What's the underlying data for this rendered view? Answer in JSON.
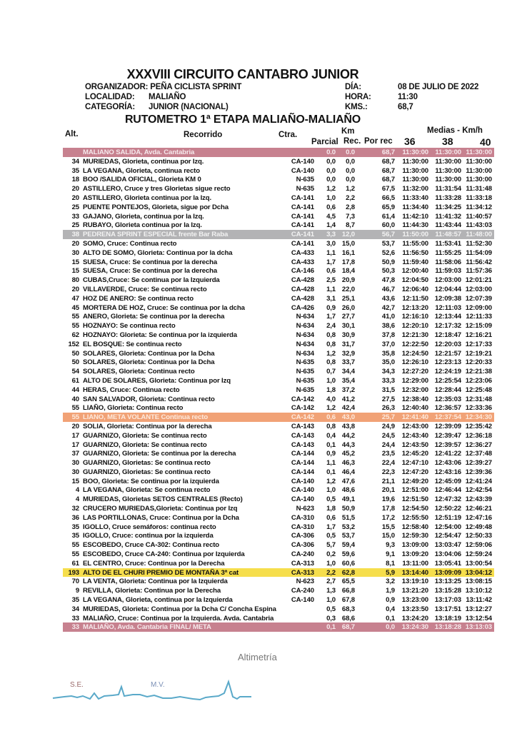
{
  "header": {
    "title": "XXXVIII CIRCUITO CANTABRO JUNIOR",
    "organizador_label": "ORGANIZADOR: PEÑA CICLISTA SPRINT",
    "localidad_label": "LOCALIDAD:",
    "localidad": "MALIAÑO",
    "categoria_label": "CATEGORÍA:",
    "categoria": "JUNIOR (NACIONAL)",
    "dia_label": "DÍA:",
    "dia": "08 DE JULIO DE 2022",
    "hora_label": "HORA:",
    "hora": "11:30",
    "kms_label": "KMS.:",
    "kms": "68,7",
    "subtitle": "RUTOMETRO  1ª ETAPA MALIAÑO-MALIAÑO"
  },
  "columns": {
    "alt": "Alt.",
    "recorrido": "Recorrido",
    "ctra": "Ctra.",
    "km": "Km",
    "medias": "Medias - Km/h",
    "parcial": "Parcial",
    "rec": "Rec.",
    "por_rec": "Por rec",
    "s36": "36",
    "s38": "38",
    "s40": "40"
  },
  "highlight_colors": {
    "start": "#c7818f",
    "sprint": "#b3b3b5",
    "mv": "#f1a276",
    "mountain": "#f6de4c"
  },
  "rows": [
    [
      "",
      "MALIANO SALIDA,  Avda. Cantabria",
      "",
      "0.0",
      "0.0",
      "68,7",
      "11:30:00",
      "11:30:00",
      "11:30:00",
      "start"
    ],
    [
      "34",
      "MURIEDAS,  Glorieta, continua por Izq.",
      "CA-140",
      "0,0",
      "0,0",
      "68,7",
      "11:30:00",
      "11:30:00",
      "11:30:00",
      ""
    ],
    [
      "35",
      "LA VEGANA, Glorieta, continua recto",
      "CA-140",
      "0,0",
      "0,0",
      "68,7",
      "11:30:00",
      "11:30:00",
      "11:30:00",
      ""
    ],
    [
      "18",
      "BOO /SALIDA OFICIAL, Glorieta  KM 0",
      "N-635",
      "0,0",
      "0,0",
      "68,7",
      "11:30:00",
      "11:30:00",
      "11:30:00",
      ""
    ],
    [
      "20",
      "ASTILLERO, Cruce y tres Glorietas sigue recto",
      "N-635",
      "1,2",
      "1,2",
      "67,5",
      "11:32:00",
      "11:31:54",
      "11:31:48",
      ""
    ],
    [
      "20",
      "ASTILLERO, Glorieta continua por la Izq.",
      "CA-141",
      "1,0",
      "2,2",
      "66,5",
      "11:33:40",
      "11:33:28",
      "11:33:18",
      ""
    ],
    [
      "25",
      "PUENTE PONTEJOS, Glorieta, sigue por Dcha",
      "CA-141",
      "0,6",
      "2,8",
      "65,9",
      "11:34:40",
      "11:34:25",
      "11:34:12",
      ""
    ],
    [
      "33",
      "GAJANO, Glorieta, continua por la Izq.",
      "CA-141",
      "4,5",
      "7,3",
      "61,4",
      "11:42:10",
      "11:41:32",
      "11:40:57",
      ""
    ],
    [
      "25",
      "RUBAYO, Glorieta continua por la Izq.",
      "CA-141",
      "1,4",
      "8,7",
      "60,0",
      "11:44:30",
      "11:43:44",
      "11:43:03",
      ""
    ],
    [
      "38",
      "PEDRENA SPRINT ESPECIAL frente Bar Raba",
      "CA-141",
      "3,3",
      "12,0",
      "56,7",
      "11:50:00",
      "11:48:57",
      "11:48:00",
      "sprint"
    ],
    [
      "20",
      "SOMO, Cruce: Continua recto",
      "CA-141",
      "3,0",
      "15,0",
      "53,7",
      "11:55:00",
      "11:53:41",
      "11:52:30",
      ""
    ],
    [
      "30",
      "ALTO DE SOMO, Glorieta: Continua por la dcha",
      "CA-433",
      "1,1",
      "16,1",
      "52,6",
      "11:56:50",
      "11:55:25",
      "11:54:09",
      ""
    ],
    [
      "15",
      "SUESA, Cruce: Se continua por la derecha",
      "CA-433",
      "1,7",
      "17,8",
      "50,9",
      "11:59:40",
      "11:58:06",
      "11:56:42",
      ""
    ],
    [
      "15",
      "SUESA, Cruce: Se continua por la derecha",
      "CA-146",
      "0,6",
      "18,4",
      "50,3",
      "12:00:40",
      "11:59:03",
      "11:57:36",
      ""
    ],
    [
      "80",
      "CUBAS,Cruce: Se continua por la Izquierda",
      "CA-428",
      "2,5",
      "20,9",
      "47,8",
      "12:04:50",
      "12:03:00",
      "12:01:21",
      ""
    ],
    [
      "20",
      "VILLAVERDE, Cruce: Se continua recto",
      "CA-428",
      "1,1",
      "22,0",
      "46,7",
      "12:06:40",
      "12:04:44",
      "12:03:00",
      ""
    ],
    [
      "47",
      "HOZ DE ANERO: Se continua recto",
      "CA-428",
      "3,1",
      "25,1",
      "43,6",
      "12:11:50",
      "12:09:38",
      "12:07:39",
      ""
    ],
    [
      "45",
      "MORTERA DE HOZ, Cruce: Se continua por la dcha",
      "CA-426",
      "0,9",
      "26,0",
      "42,7",
      "12:13:20",
      "12:11:03",
      "12:09:00",
      ""
    ],
    [
      "55",
      "ANERO, Glorieta: Se  continua por la derecha",
      "N-634",
      "1,7",
      "27,7",
      "41,0",
      "12:16:10",
      "12:13:44",
      "12:11:33",
      ""
    ],
    [
      "55",
      "HOZNAYO: Se continua recto",
      "N-634",
      "2,4",
      "30,1",
      "38,6",
      "12:20:10",
      "12:17:32",
      "12:15:09",
      ""
    ],
    [
      "62",
      "HOZNAYO: Glorieta: Se continua por la izquierda",
      "N-634",
      "0,8",
      "30,9",
      "37,8",
      "12:21:30",
      "12:18:47",
      "12:16:21",
      ""
    ],
    [
      "152",
      "EL BOSQUE: Se continua recto",
      "N-634",
      "0,8",
      "31,7",
      "37,0",
      "12:22:50",
      "12:20:03",
      "12:17:33",
      ""
    ],
    [
      "50",
      "SOLARES, Glorieta: Continua por la Dcha",
      "N-634",
      "1,2",
      "32,9",
      "35,8",
      "12:24:50",
      "12:21:57",
      "12:19:21",
      ""
    ],
    [
      "50",
      "SOLARES, Glorieta: Continua por la Dcha",
      "N-635",
      "0,8",
      "33,7",
      "35,0",
      "12:26:10",
      "12:23:13",
      "12:20:33",
      ""
    ],
    [
      "54",
      "SOLARES, Glorieta: Continua recto",
      "N-635",
      "0,7",
      "34,4",
      "34,3",
      "12:27:20",
      "12:24:19",
      "12:21:38",
      ""
    ],
    [
      "61",
      "ALTO DE SOLARES, Glorieta: Continua por Izq",
      "N-635",
      "1,0",
      "35,4",
      "33,3",
      "12:29:00",
      "12:25:54",
      "12:23:06",
      ""
    ],
    [
      "44",
      "HERAS, Cruce: Continua recto",
      "N-635",
      "1,8",
      "37,2",
      "31,5",
      "12:32:00",
      "12:28:44",
      "12:25:48",
      ""
    ],
    [
      "40",
      "SAN SALVADOR, Glorieta: Continua recto",
      "CA-142",
      "4,0",
      "41,2",
      "27,5",
      "12:38:40",
      "12:35:03",
      "12:31:48",
      ""
    ],
    [
      "55",
      "LIAÑO, Glorieta: Continua recto",
      "CA-142",
      "1,2",
      "42,4",
      "26,3",
      "12:40:40",
      "12:36:57",
      "12:33:36",
      ""
    ],
    [
      "55",
      "LIANO,  META VOLANTE   Continua recto",
      "CA-142",
      "0,6",
      "43,0",
      "25,7",
      "12:41:40",
      "12:37:54",
      "12:34:30",
      "mv"
    ],
    [
      "20",
      "SOLIA, Glorieta: Continua por la derecha",
      "CA-143",
      "0,8",
      "43,8",
      "24,9",
      "12:43:00",
      "12:39:09",
      "12:35:42",
      ""
    ],
    [
      "17",
      "GUARNIZO, Glorieta: Se continua recto",
      "CA-143",
      "0,4",
      "44,2",
      "24,5",
      "12:43:40",
      "12:39:47",
      "12:36:18",
      ""
    ],
    [
      "17",
      "GUARNIZO, Glorieta: Se continua recto",
      "CA-143",
      "0,1",
      "44,3",
      "24,4",
      "12:43:50",
      "12:39:57",
      "12:36:27",
      ""
    ],
    [
      "37",
      "GUARNIZO, Glorieta: Se continua por la derecha",
      "CA-144",
      "0,9",
      "45,2",
      "23,5",
      "12:45:20",
      "12:41:22",
      "12:37:48",
      ""
    ],
    [
      "30",
      "GUARNIZO, Glorietas: Se continua recto",
      "CA-144",
      "1,1",
      "46,3",
      "22,4",
      "12:47:10",
      "12:43:06",
      "12:39:27",
      ""
    ],
    [
      "30",
      "GUARNIZO, Glorietas: Se continua recto",
      "CA-144",
      "0,1",
      "46,4",
      "22,3",
      "12:47:20",
      "12:43:16",
      "12:39:36",
      ""
    ],
    [
      "15",
      "BOO, Glorieta: Se continua por la izquierda",
      "CA-140",
      "1,2",
      "47,6",
      "21,1",
      "12:49:20",
      "12:45:09",
      "12:41:24",
      ""
    ],
    [
      "4",
      "LA VEGANA, Glorieta: Se continua recto",
      "CA-140",
      "1,0",
      "48,6",
      "20,1",
      "12:51:00",
      "12:46:44",
      "12:42:54",
      ""
    ],
    [
      "4",
      "MURIEDAS, Glorietas SETOS CENTRALES (Recto)",
      "CA-140",
      "0,5",
      "49,1",
      "19,6",
      "12:51:50",
      "12:47:32",
      "12:43:39",
      ""
    ],
    [
      "32",
      "CRUCERO MURIEDAS,Glorieta: Continua por Izq",
      "N-623",
      "1,8",
      "50,9",
      "17,8",
      "12:54:50",
      "12:50:22",
      "12:46:21",
      ""
    ],
    [
      "36",
      "LAS PORTILLONAS, Cruce: Continua por la Dcha",
      "CA-310",
      "0,6",
      "51,5",
      "17,2",
      "12:55:50",
      "12:51:19",
      "12:47:16",
      ""
    ],
    [
      "35",
      "IGOLLO, Cruce semáforos: continua recto",
      "CA-310",
      "1,7",
      "53,2",
      "15,5",
      "12:58:40",
      "12:54:00",
      "12:49:48",
      ""
    ],
    [
      "35",
      "IGOLLO, Cruce: continua por la izquierda",
      "CA-306",
      "0,5",
      "53,7",
      "15,0",
      "12:59:30",
      "12:54:47",
      "12:50:33",
      ""
    ],
    [
      "55",
      "ESCOBEDO, Cruce CA-302: Continua recto",
      "CA-306",
      "5,7",
      "59,4",
      "9,3",
      "13:09:00",
      "13:03:47",
      "12:59:06",
      ""
    ],
    [
      "55",
      "ESCOBEDO, Cruce CA-240: Continua por Izquierda",
      "CA-240",
      "0,2",
      "59,6",
      "9,1",
      "13:09:20",
      "13:04:06",
      "12:59:24",
      ""
    ],
    [
      "61",
      "EL CENTRO, Cruce: Continua por la Derecha",
      "CA-313",
      "1,0",
      "60,6",
      "8,1",
      "13:11:00",
      "13:05:41",
      "13:00:54",
      ""
    ],
    [
      "193",
      "ALTO DE EL CHURI PREMIO DE MONTAÑA 3ª cat",
      "CA-313",
      "2,2",
      "62,8",
      "5,9",
      "13:14:40",
      "13:09:09",
      "13:04:12",
      "mountain"
    ],
    [
      "70",
      "LA VENTA, Glorieta: Continua por la Izquierda",
      "N-623",
      "2,7",
      "65,5",
      "3,2",
      "13:19:10",
      "13:13:25",
      "13:08:15",
      ""
    ],
    [
      "9",
      "REVILLA, Glorieta: Continua por la Derecha",
      "CA-240",
      "1,3",
      "66,8",
      "1,9",
      "13:21:20",
      "13:15:28",
      "13:10:12",
      ""
    ],
    [
      "35",
      "LA VEGANA, Glorieta, continua por la Izquierda",
      "CA-140",
      "1,0",
      "67,8",
      "0,9",
      "13:23:00",
      "13:17:03",
      "13:11:42",
      ""
    ],
    [
      "34",
      "MURIEDAS, Glorieta: Continua por la Dcha C/ Concha Espina",
      "",
      "0,5",
      "68,3",
      "0,4",
      "13:23:50",
      "13:17:51",
      "13:12:27",
      ""
    ],
    [
      "33",
      "MALIAÑO, Cruce: Continua por la Izquierda. Avda. Cantabria",
      "",
      "0,3",
      "68,6",
      "0,1",
      "13:24:20",
      "13:18:19",
      "13:12:54",
      ""
    ],
    [
      "33",
      "MALIAÑO,  Avda. Cantabria     FINAL/  META",
      "",
      "0,1",
      "68,7",
      "0,0",
      "13:24:30",
      "13:18:28",
      "13:13:03",
      "start"
    ]
  ],
  "altimetria": {
    "title": "Altimetría",
    "label_se": "S.E.",
    "label_mv": "M.V.",
    "profile_color": "#5aa9c9"
  }
}
